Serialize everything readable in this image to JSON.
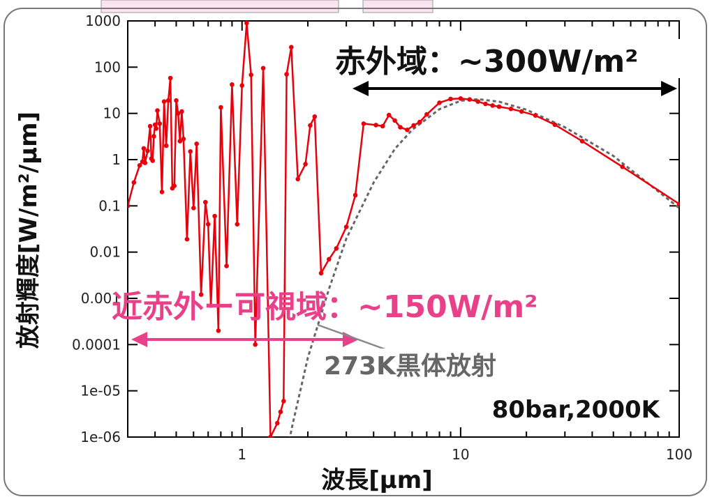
{
  "chart_data": {
    "type": "line",
    "xlabel": "波長[μm]",
    "ylabel": "放射輝度[W/m²/μm]",
    "x_scale": "log",
    "y_scale": "log",
    "xlim": [
      0.3,
      100
    ],
    "ylim": [
      1e-06,
      1000
    ],
    "x_ticks": [
      {
        "value": 1,
        "label": "1"
      },
      {
        "value": 10,
        "label": "10"
      },
      {
        "value": 100,
        "label": "100"
      }
    ],
    "y_ticks": [
      {
        "value": 1000,
        "label": "1000"
      },
      {
        "value": 100,
        "label": "100"
      },
      {
        "value": 10,
        "label": "10"
      },
      {
        "value": 1,
        "label": "1"
      },
      {
        "value": 0.1,
        "label": "0.1"
      },
      {
        "value": 0.01,
        "label": "0.01"
      },
      {
        "value": 0.001,
        "label": "0.001"
      },
      {
        "value": 0.0001,
        "label": "0.0001"
      },
      {
        "value": 1e-05,
        "label": "1e-05"
      },
      {
        "value": 1e-06,
        "label": "1e-06"
      }
    ],
    "series": [
      {
        "color": "#e8000b",
        "style": "solid-with-markers",
        "points": [
          [
            0.3,
            0.1
          ],
          [
            0.32,
            0.32
          ],
          [
            0.34,
            0.75
          ],
          [
            0.35,
            0.9
          ],
          [
            0.355,
            1.75
          ],
          [
            0.36,
            0.85
          ],
          [
            0.37,
            1.55
          ],
          [
            0.38,
            5.3
          ],
          [
            0.385,
            1.05
          ],
          [
            0.39,
            0.95
          ],
          [
            0.395,
            3.2
          ],
          [
            0.4,
            5.7
          ],
          [
            0.405,
            4.7
          ],
          [
            0.41,
            11.5
          ],
          [
            0.42,
            6.0
          ],
          [
            0.43,
            0.2
          ],
          [
            0.44,
            18.0
          ],
          [
            0.45,
            2.0
          ],
          [
            0.46,
            19.0
          ],
          [
            0.47,
            58.0
          ],
          [
            0.48,
            0.24
          ],
          [
            0.49,
            0.27
          ],
          [
            0.5,
            19.0
          ],
          [
            0.51,
            10.0
          ],
          [
            0.52,
            2.5
          ],
          [
            0.53,
            11.0
          ],
          [
            0.54,
            2.8
          ],
          [
            0.56,
            0.019
          ],
          [
            0.58,
            1.5
          ],
          [
            0.6,
            0.09
          ],
          [
            0.62,
            2.2
          ],
          [
            0.65,
            0.0012
          ],
          [
            0.68,
            0.12
          ],
          [
            0.7,
            0.04
          ],
          [
            0.72,
            0.0007
          ],
          [
            0.75,
            0.06
          ],
          [
            0.78,
            0.0002
          ],
          [
            0.8,
            13.5
          ],
          [
            0.85,
            0.005
          ],
          [
            0.9,
            42.0
          ],
          [
            0.95,
            0.04
          ],
          [
            1.0,
            40.0
          ],
          [
            1.05,
            900.0
          ],
          [
            1.1,
            68.0
          ],
          [
            1.15,
            0.0001
          ],
          [
            1.25,
            95.0
          ],
          [
            1.35,
            1e-06
          ],
          [
            1.45,
            2e-06
          ],
          [
            1.5,
            3.5e-06
          ],
          [
            1.55,
            6e-06
          ],
          [
            1.6,
            70.0
          ],
          [
            1.68,
            270.0
          ],
          [
            1.8,
            0.38
          ],
          [
            1.95,
            0.8
          ],
          [
            2.05,
            5.5
          ],
          [
            2.15,
            8.5
          ],
          [
            2.3,
            0.0035
          ],
          [
            2.5,
            0.007
          ],
          [
            2.7,
            0.012
          ],
          [
            3.0,
            0.035
          ],
          [
            3.3,
            0.17
          ],
          [
            3.6,
            6.0
          ],
          [
            4.1,
            5.6
          ],
          [
            4.4,
            5.3
          ],
          [
            4.7,
            9.2
          ],
          [
            5.0,
            7.0
          ],
          [
            5.3,
            5.0
          ],
          [
            5.7,
            4.4
          ],
          [
            6.1,
            5.5
          ],
          [
            6.5,
            6.5
          ],
          [
            7.0,
            9.5
          ],
          [
            8.0,
            17.0
          ],
          [
            9.0,
            20.5
          ],
          [
            10.0,
            21.0
          ],
          [
            11.0,
            20.0
          ],
          [
            12.0,
            18.0
          ],
          [
            13.0,
            16.0
          ],
          [
            14.0,
            14.8
          ],
          [
            15.0,
            14.0
          ],
          [
            17.0,
            12.5
          ],
          [
            19.0,
            11.0
          ],
          [
            22.0,
            9.0
          ],
          [
            27.0,
            5.7
          ],
          [
            36.0,
            2.5
          ],
          [
            55.0,
            0.7
          ],
          [
            100.0,
            0.11
          ]
        ]
      },
      {
        "name": "273K黒体放射",
        "color": "#666666",
        "style": "dashed",
        "points": [
          [
            1.5,
            1e-07
          ],
          [
            1.7,
            1.8e-06
          ],
          [
            2.0,
            5.2e-05
          ],
          [
            2.5,
            0.0016
          ],
          [
            3.0,
            0.0195
          ],
          [
            4.0,
            0.32
          ],
          [
            5.0,
            1.7
          ],
          [
            6.0,
            4.4
          ],
          [
            8.0,
            12.3
          ],
          [
            10.0,
            18.7
          ],
          [
            12.0,
            20.3
          ],
          [
            15.0,
            17.9
          ],
          [
            20.0,
            12.0
          ],
          [
            30.0,
            5.0
          ],
          [
            50.0,
            1.2
          ],
          [
            100.0,
            0.09
          ]
        ]
      }
    ],
    "annotations": {
      "infrared": "赤外域：~300W/m²",
      "visible": "近赤外ー可視域：~150W/m²",
      "blackbody": "273K黒体放射",
      "condition": "80bar,2000K"
    },
    "colors": {
      "infrared_arrow": "#000000",
      "visible_text": "#e8418a",
      "blackbody_label": "#666666",
      "curve": "#e8000b"
    }
  }
}
